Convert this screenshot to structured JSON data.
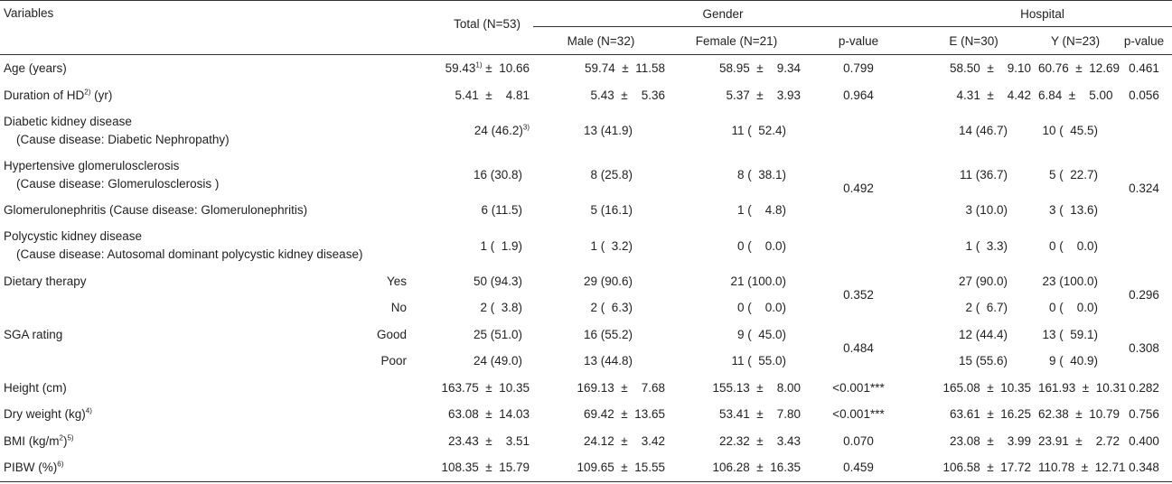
{
  "header": {
    "variables": "Variables",
    "total": "Total (N=53)",
    "gender": "Gender",
    "hospital": "Hospital",
    "male": "Male (N=32)",
    "female": "Female (N=21)",
    "pvalue": "p-value",
    "e": "E (N=30)",
    "y": "Y (N=23)"
  },
  "rows": {
    "age": {
      "label": "Age (years)",
      "total": "59.43",
      "total_sup": "1)",
      "total_sd": "±  10.66",
      "male": "59.74  ±  11.58",
      "female": "58.95  ±    9.34",
      "p1": "0.799",
      "e": "58.50  ±    9.10",
      "y": "60.76  ±  12.69",
      "p2": "0.461"
    },
    "duration": {
      "label": "Duration of HD",
      "label_sup": "2)",
      "label_unit": " (yr)",
      "total": "5.41  ±    4.81",
      "male": "5.43  ±    5.36",
      "female": "5.37  ±    3.93",
      "p1": "0.964",
      "e": "4.31  ±    4.42",
      "y": "6.84  ±    5.00",
      "p2": "0.056"
    },
    "diabetic": {
      "label": "Diabetic kidney disease",
      "sub": "(Cause disease: Diabetic Nephropathy)",
      "total": "24 (46.2)",
      "total_sup": "3)",
      "male": "13 (41.9)",
      "female": "11 (  52.4)",
      "e": "14 (46.7)",
      "y": "10 (  45.5)"
    },
    "hypertensive": {
      "label": "Hypertensive glomerulosclerosis",
      "sub": "(Cause disease: Glomerulosclerosis )",
      "total": "16 (30.8)",
      "male": "8 (25.8)",
      "female": "8 (  38.1)",
      "e": "11 (36.7)",
      "y": "5 (  22.7)"
    },
    "glomerulo": {
      "label": "Glomerulonephritis (Cause disease: Glomerulonephritis)",
      "total": "6 (11.5)",
      "male": "5 (16.1)",
      "female": "1 (    4.8)",
      "e": "3 (10.0)",
      "y": "3 (  13.6)"
    },
    "polycystic": {
      "label": "Polycystic kidney disease",
      "sub": "(Cause disease: Autosomal dominant polycystic kidney disease)",
      "total": "1 (  1.9)",
      "male": "1 (  3.2)",
      "female": "0 (    0.0)",
      "e": "1 (  3.3)",
      "y": "0 (    0.0)"
    },
    "cause_p1": "0.492",
    "cause_p2": "0.324",
    "dietary": {
      "label": "Dietary therapy",
      "yes": "Yes",
      "no": "No",
      "yes_total": "50 (94.3)",
      "yes_male": "29 (90.6)",
      "yes_female": "21 (100.0)",
      "yes_e": "27 (90.0)",
      "yes_y": "23 (100.0)",
      "no_total": "2 (  3.8)",
      "no_male": "2 (  6.3)",
      "no_female": "0 (    0.0)",
      "no_e": "2 (  6.7)",
      "no_y": "0 (    0.0)",
      "p1": "0.352",
      "p2": "0.296"
    },
    "sga": {
      "label": "SGA rating",
      "good": "Good",
      "poor": "Poor",
      "good_total": "25 (51.0)",
      "good_male": "16 (55.2)",
      "good_female": "9 (  45.0)",
      "good_e": "12 (44.4)",
      "good_y": "13 (  59.1)",
      "poor_total": "24 (49.0)",
      "poor_male": "13 (44.8)",
      "poor_female": "11 (  55.0)",
      "poor_e": "15 (55.6)",
      "poor_y": "9 (  40.9)",
      "p1": "0.484",
      "p2": "0.308"
    },
    "height": {
      "label": "Height (cm)",
      "total": "163.75  ±  10.35",
      "male": "169.13  ±    7.68",
      "female": "155.13  ±    8.00",
      "p1": "<0.001***",
      "e": "165.08  ±  10.35",
      "y": "161.93  ±  10.31",
      "p2": "0.282"
    },
    "dryweight": {
      "label": "Dry weight (kg)",
      "label_sup": "4)",
      "total": "63.08  ±  14.03",
      "male": "69.42  ±  13.65",
      "female": "53.41  ±    7.80",
      "p1": "<0.001***",
      "e": "63.61  ±  16.25",
      "y": "62.38  ±  10.79",
      "p2": "0.756"
    },
    "bmi": {
      "label": "BMI (kg/m",
      "label_sup": "2",
      "label_close": ")",
      "label_sup2": "5)",
      "total": "23.43  ±    3.51",
      "male": "24.12  ±    3.42",
      "female": "22.32  ±    3.43",
      "p1": "0.070",
      "e": "23.08  ±    3.99",
      "y": "23.91  ±    2.72",
      "p2": "0.400"
    },
    "pibw": {
      "label": "PIBW (%)",
      "label_sup": "6)",
      "total": "108.35  ±  15.79",
      "male": "109.65  ±  15.55",
      "female": "106.28  ±  16.35",
      "p1": "0.459",
      "e": "106.58  ±  17.72",
      "y": "110.78  ±  12.71",
      "p2": "0.348"
    }
  }
}
